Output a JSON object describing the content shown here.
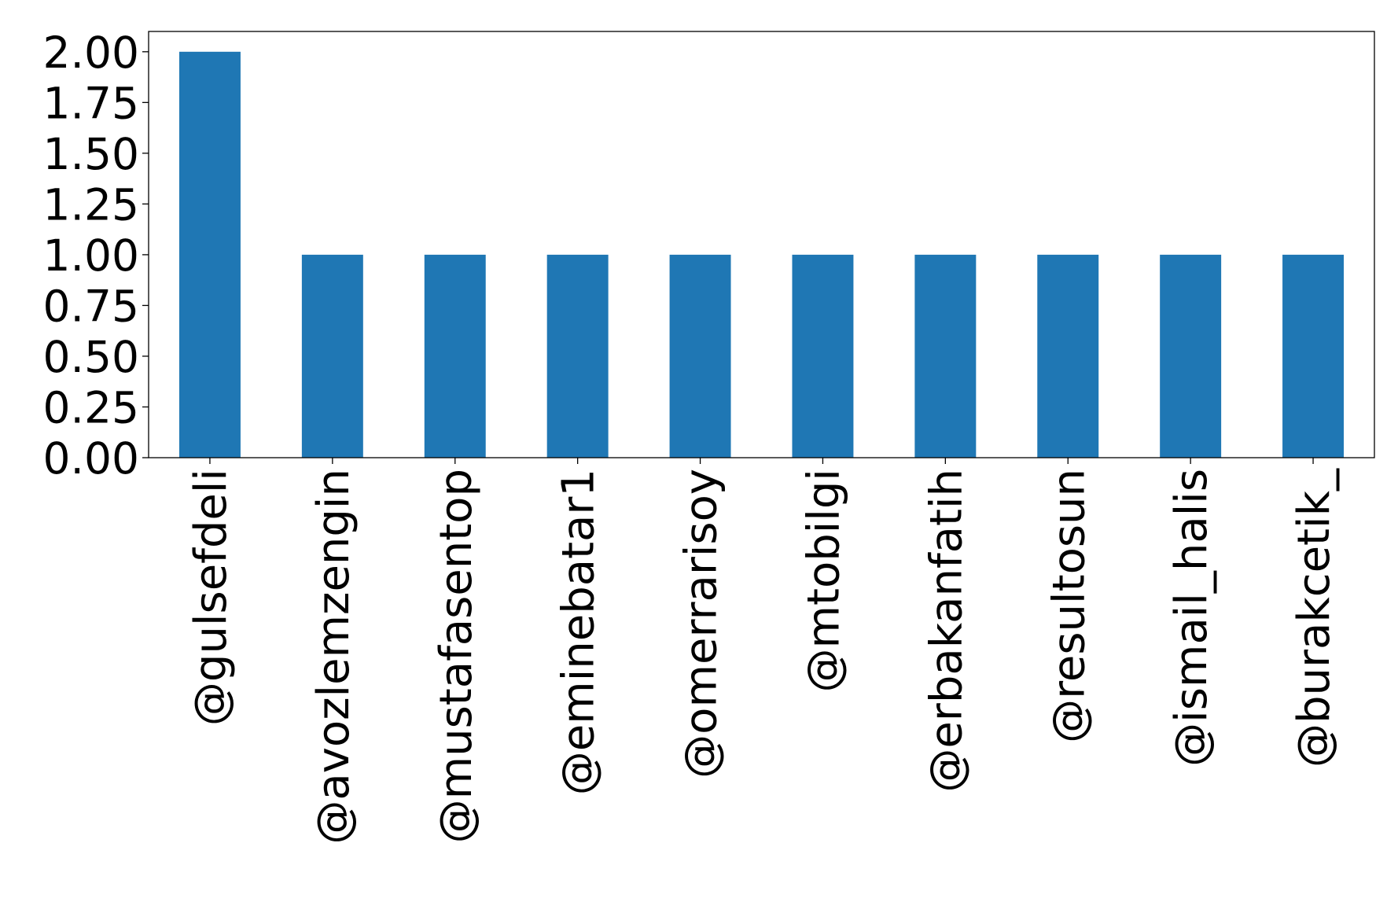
{
  "chart_data": {
    "type": "bar",
    "title": "",
    "xlabel": "",
    "ylabel": "",
    "categories": [
      "@gulsefdeli",
      "@avozlemzengin",
      "@mustafasentop",
      "@eminebatar1",
      "@omerrarisoy",
      "@mtobilgi",
      "@erbakanfatih",
      "@resultosun",
      "@ismail_halis",
      "@burakcetik_"
    ],
    "values": [
      2,
      1,
      1,
      1,
      1,
      1,
      1,
      1,
      1,
      1
    ],
    "ylim": [
      0,
      2.1
    ],
    "yticks": [
      "0.00",
      "0.25",
      "0.50",
      "0.75",
      "1.00",
      "1.25",
      "1.50",
      "1.75",
      "2.00"
    ],
    "grid": false,
    "legend": "none",
    "bar_color": "#1f77b4"
  }
}
